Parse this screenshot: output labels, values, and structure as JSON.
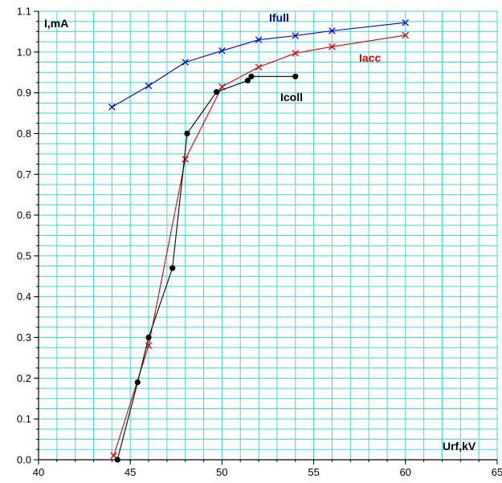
{
  "chart_data": {
    "type": "line",
    "xlabel": "Urf,kV",
    "ylabel": "I,mA",
    "xlim": [
      40,
      65
    ],
    "ylim": [
      0.0,
      1.1
    ],
    "grid": true,
    "x_ticks": [
      40,
      45,
      50,
      55,
      60,
      65
    ],
    "x_tick_labels": [
      "40",
      "45",
      "50",
      "55",
      "60",
      "65"
    ],
    "y_ticks": [
      0.0,
      0.1,
      0.2,
      0.3,
      0.4,
      0.5,
      0.6,
      0.7,
      0.8,
      0.9,
      1.0,
      1.1
    ],
    "y_tick_labels": [
      "0.0",
      "0.1",
      "0.2",
      "0.3",
      "0.4",
      "0.5",
      "0.6",
      "0.7",
      "0.8",
      "0.9",
      "1.0",
      "1.1"
    ],
    "colors": {
      "grid": "#3fd6d6",
      "axis": "#000000",
      "Ifull": "#0000cc",
      "Iacc": "#dd0000",
      "Icoll": "#000000"
    },
    "series": [
      {
        "name": "Ifull",
        "marker": "x",
        "x": [
          44,
          46,
          48,
          50,
          52,
          54,
          56,
          60
        ],
        "y": [
          0.865,
          0.917,
          0.975,
          1.003,
          1.03,
          1.04,
          1.052,
          1.072
        ]
      },
      {
        "name": "Iacc",
        "marker": "x",
        "x": [
          44.1,
          46,
          48,
          50,
          52,
          54,
          56,
          60
        ],
        "y": [
          0.01,
          0.28,
          0.737,
          0.915,
          0.963,
          0.997,
          1.013,
          1.041
        ]
      },
      {
        "name": "Icoll",
        "marker": "dot",
        "x": [
          44.3,
          45.4,
          46,
          47.3,
          48.1,
          49.7,
          51.4,
          51.6,
          54
        ],
        "y": [
          0.0,
          0.19,
          0.3,
          0.47,
          0.8,
          0.902,
          0.93,
          0.94,
          0.94
        ]
      }
    ]
  }
}
